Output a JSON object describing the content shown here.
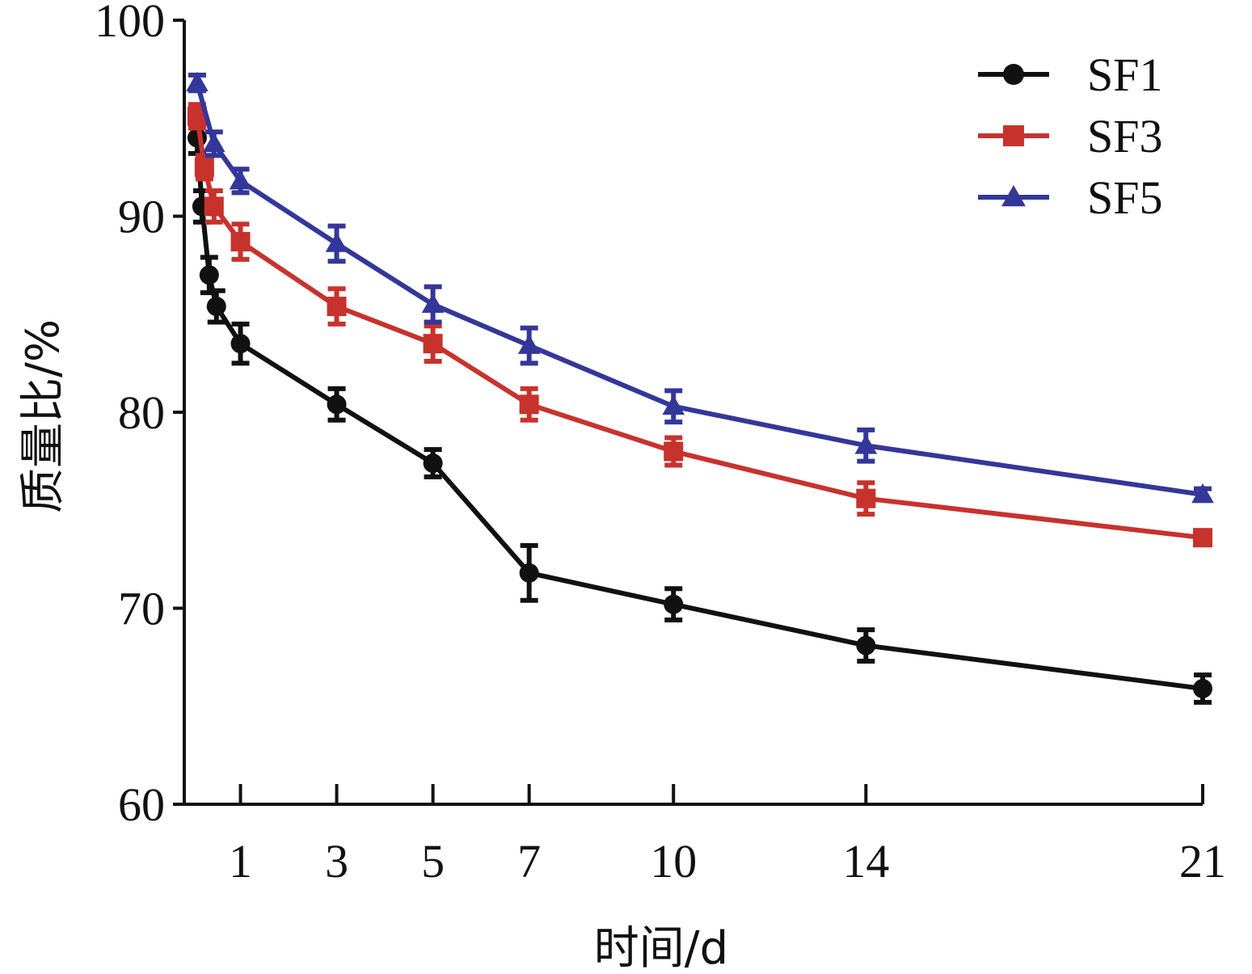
{
  "chart_data": {
    "type": "line",
    "title": "",
    "xlabel": "时间/d",
    "ylabel": "质量比/%",
    "xlim": [
      0,
      21
    ],
    "ylim": [
      60,
      100
    ],
    "x_ticks": [
      1,
      3,
      5,
      7,
      10,
      14,
      21
    ],
    "y_ticks": [
      60,
      70,
      80,
      90,
      100
    ],
    "grid": false,
    "legend_position": "top-right",
    "series": [
      {
        "name": "SF1",
        "color": "#111111",
        "marker": "circle",
        "points": [
          {
            "x": 0.1,
            "y": 94.0,
            "err": 0.8
          },
          {
            "x": 0.2,
            "y": 90.5,
            "err": 0.8
          },
          {
            "x": 0.35,
            "y": 87.0,
            "err": 0.9
          },
          {
            "x": 0.5,
            "y": 85.4,
            "err": 0.8
          },
          {
            "x": 1,
            "y": 83.5,
            "err": 1.0
          },
          {
            "x": 3,
            "y": 80.4,
            "err": 0.8
          },
          {
            "x": 5,
            "y": 77.4,
            "err": 0.7
          },
          {
            "x": 7,
            "y": 71.8,
            "err": 1.4
          },
          {
            "x": 10,
            "y": 70.2,
            "err": 0.8
          },
          {
            "x": 14,
            "y": 68.1,
            "err": 0.8
          },
          {
            "x": 21,
            "y": 65.9,
            "err": 0.7
          }
        ]
      },
      {
        "name": "SF3",
        "color": "#c8322d",
        "marker": "square",
        "points": [
          {
            "x": 0.1,
            "y": 95.1,
            "err": 0.6
          },
          {
            "x": 0.25,
            "y": 92.5,
            "err": 0.6
          },
          {
            "x": 0.45,
            "y": 90.5,
            "err": 0.8
          },
          {
            "x": 1,
            "y": 88.7,
            "err": 0.9
          },
          {
            "x": 3,
            "y": 85.4,
            "err": 0.9
          },
          {
            "x": 5,
            "y": 83.5,
            "err": 0.9
          },
          {
            "x": 7,
            "y": 80.4,
            "err": 0.8
          },
          {
            "x": 10,
            "y": 78.0,
            "err": 0.7
          },
          {
            "x": 14,
            "y": 75.6,
            "err": 0.8
          },
          {
            "x": 21,
            "y": 73.6,
            "err": 0.3
          }
        ]
      },
      {
        "name": "SF5",
        "color": "#33379a",
        "marker": "triangle",
        "points": [
          {
            "x": 0.1,
            "y": 96.8,
            "err": 0.4
          },
          {
            "x": 0.45,
            "y": 93.7,
            "err": 0.6
          },
          {
            "x": 1,
            "y": 91.8,
            "err": 0.6
          },
          {
            "x": 3,
            "y": 88.6,
            "err": 0.9
          },
          {
            "x": 5,
            "y": 85.5,
            "err": 0.9
          },
          {
            "x": 7,
            "y": 83.4,
            "err": 0.9
          },
          {
            "x": 10,
            "y": 80.3,
            "err": 0.8
          },
          {
            "x": 14,
            "y": 78.3,
            "err": 0.8
          },
          {
            "x": 21,
            "y": 75.8,
            "err": 0.3
          }
        ]
      }
    ]
  }
}
